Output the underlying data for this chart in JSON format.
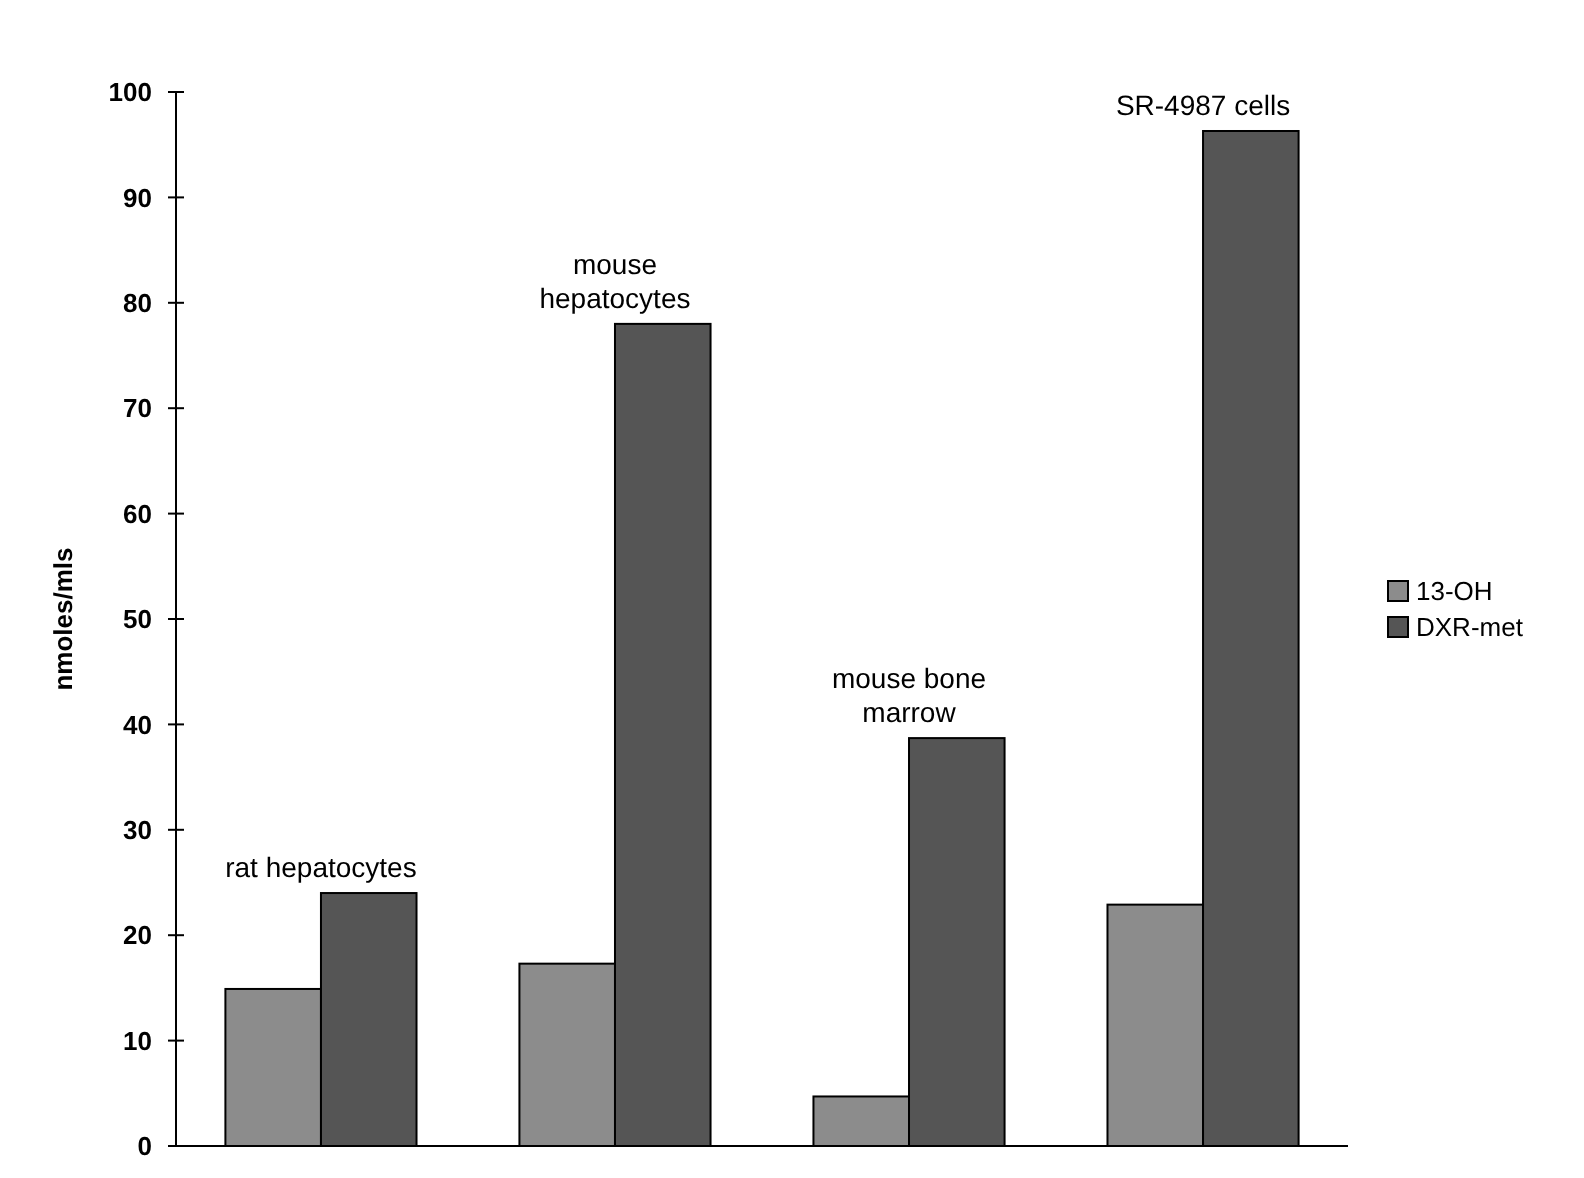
{
  "chart_data": {
    "type": "bar",
    "ylabel": "nmoles/mls",
    "categories": [
      "rat  hepatocytes",
      "mouse\nhepatocytes",
      "mouse bone\nmarrow",
      "SR-4987 cells"
    ],
    "series": [
      {
        "name": "13-OH",
        "color": "#8c8c8c",
        "values": [
          14.9,
          17.3,
          4.7,
          22.9
        ]
      },
      {
        "name": "DXR-met",
        "color": "#555555",
        "values": [
          24,
          78,
          38.7,
          96.3
        ]
      }
    ],
    "ylim": [
      0,
      100
    ],
    "yticks": [
      0,
      10,
      20,
      30,
      40,
      50,
      60,
      70,
      80,
      90,
      100
    ],
    "grid": false,
    "legend": "right"
  }
}
